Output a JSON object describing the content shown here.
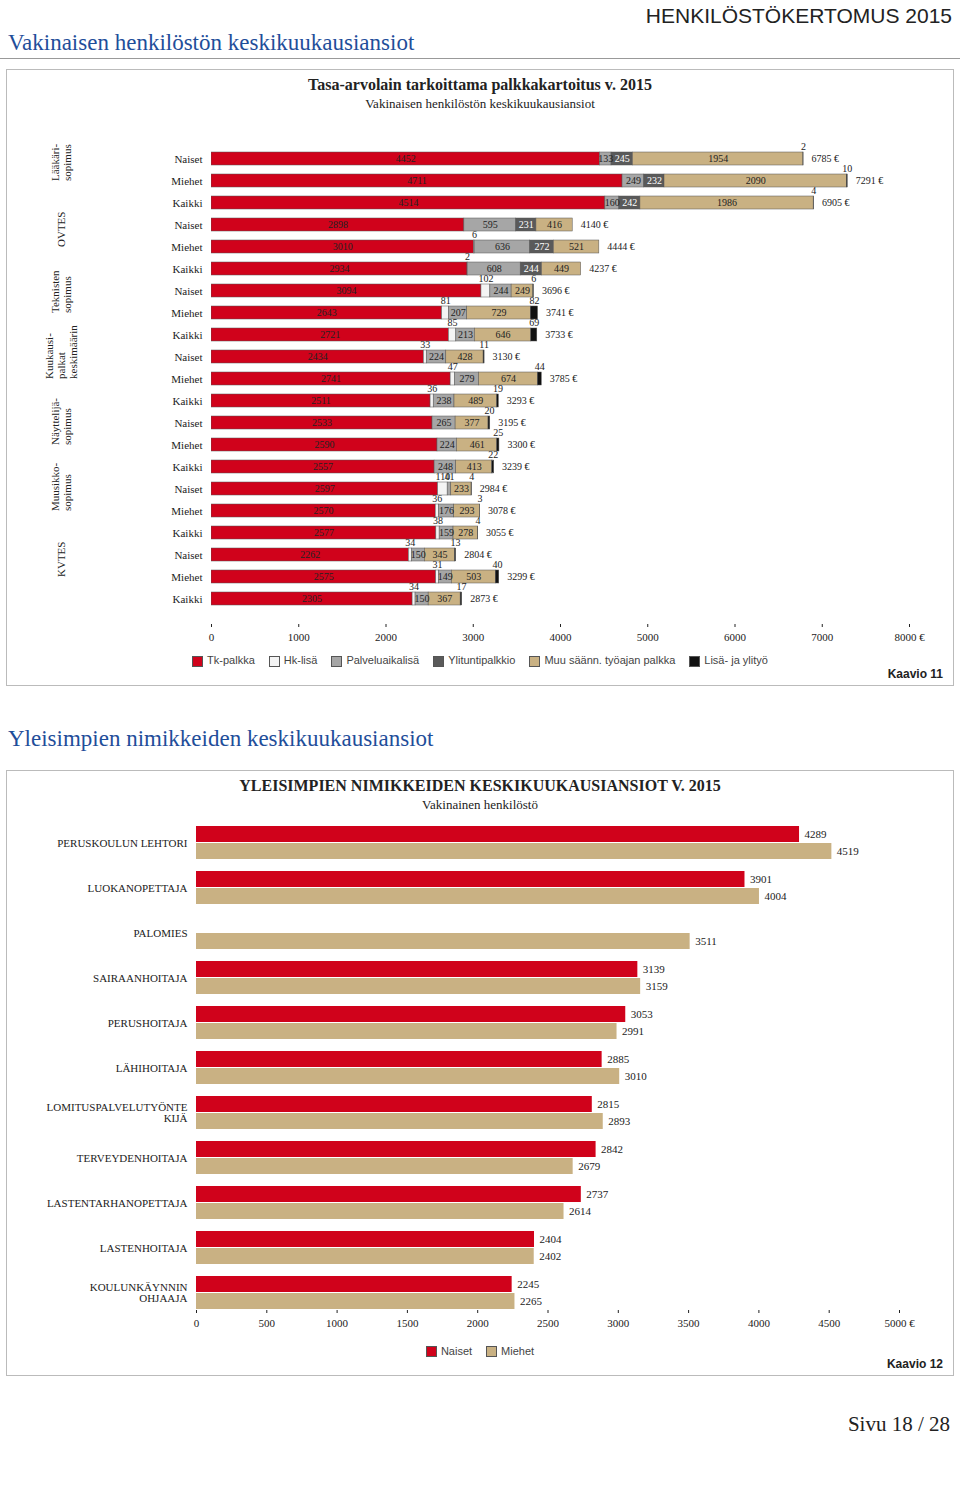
{
  "page": {
    "header": "Vakinaisen henkilöstön keskikuukausiansiot",
    "header_right": "HENKILÖSTÖKERTOMUS 2015",
    "section": "Yleisimpien nimikkeiden keskikuukausiansiot",
    "footer": "Sivu 18 / 28"
  },
  "chart_data": [
    {
      "type": "bar",
      "orientation": "horizontal",
      "stacked": true,
      "data_labels": true,
      "grid": false,
      "legend": "bottom",
      "title": "Tasa-arvolain tarkoittama palkkakartoitus v. 2015",
      "subtitle": "Vakinaisen henkilöstön keskikuukausiansiot",
      "caption": "Kaavio 11",
      "groups": [
        {
          "label": "Lääkäri-\nsopimus",
          "categories": [
            "Naiset",
            "Miehet",
            "Kaikki"
          ]
        },
        {
          "label": "OVTES",
          "categories": [
            "Naiset",
            "Miehet",
            "Kaikki"
          ]
        },
        {
          "label": "Teknisten\nsopimus",
          "categories": [
            "Naiset",
            "Miehet",
            "Kaikki"
          ]
        },
        {
          "label": "Kuukausi-\npalkat\nkeskimäärin",
          "categories": [
            "Naiset",
            "Miehet",
            "Kaikki"
          ]
        },
        {
          "label": "Näyttelijä-\nsopimus",
          "categories": [
            "Naiset",
            "Miehet",
            "Kaikki"
          ]
        },
        {
          "label": "Muusikko-\nsopimus",
          "categories": [
            "Naiset",
            "Miehet",
            "Kaikki"
          ]
        },
        {
          "label": "KVTES",
          "categories": [
            "Naiset",
            "Miehet",
            "Kaikki"
          ]
        }
      ],
      "series": [
        {
          "name": "Tk-palkka",
          "color": "#d0021b",
          "values": [
            4452,
            4711,
            4514,
            2898,
            3010,
            2934,
            3094,
            2643,
            2721,
            2434,
            2741,
            2511,
            2533,
            2590,
            2557,
            2597,
            2570,
            2577,
            2262,
            2575,
            2305
          ]
        },
        {
          "name": "Hk-lisä",
          "color": "#f4f4f4",
          "values": [
            0,
            0,
            0,
            0,
            6,
            2,
            102,
            81,
            85,
            33,
            47,
            36,
            0,
            0,
            0,
            110,
            36,
            38,
            34,
            31,
            34
          ]
        },
        {
          "name": "Palveluaikalisä",
          "color": "#a6a6a6",
          "values": [
            133,
            249,
            160,
            595,
            636,
            608,
            244,
            207,
            213,
            224,
            279,
            238,
            265,
            224,
            248,
            41,
            176,
            159,
            150,
            149,
            150
          ]
        },
        {
          "name": "Ylituntipalkkio",
          "color": "#5a5a5a",
          "values": [
            245,
            232,
            242,
            231,
            272,
            244,
            0,
            0,
            0,
            0,
            0,
            0,
            0,
            0,
            0,
            0,
            0,
            0,
            0,
            0,
            0
          ]
        },
        {
          "name": "Muu säänn. työajan palkka",
          "color": "#c9b183",
          "values": [
            1954,
            2090,
            1986,
            416,
            521,
            449,
            249,
            729,
            646,
            428,
            674,
            489,
            377,
            461,
            413,
            233,
            293,
            278,
            345,
            503,
            367
          ]
        },
        {
          "name": "Lisä- ja ylityö",
          "color": "#111111",
          "values": [
            2,
            10,
            4,
            0,
            0,
            0,
            6,
            82,
            69,
            11,
            44,
            19,
            20,
            25,
            22,
            4,
            3,
            4,
            13,
            40,
            17
          ]
        }
      ],
      "totals": [
        6785,
        7291,
        6905,
        4140,
        4444,
        4237,
        3696,
        3741,
        3733,
        3130,
        3785,
        3293,
        3195,
        3300,
        3239,
        2984,
        3078,
        3055,
        2804,
        3299,
        2873
      ],
      "total_labels": [
        "6785 €",
        "7291 €",
        "6905 €",
        "4140 €",
        "4444 €",
        "4237 €",
        "3696 €",
        "3741 €",
        "3733 €",
        "3130 €",
        "3785 €",
        "3293 €",
        "3195 €",
        "3300 €",
        "3239 €",
        "2984 €",
        "3078 €",
        "3055 €",
        "2804 €",
        "3299 €",
        "2873 €"
      ],
      "xlim": [
        0,
        8000
      ],
      "xticks": [
        0,
        1000,
        2000,
        3000,
        4000,
        5000,
        6000,
        7000,
        {
          "value": 8000,
          "label": "8000 €"
        }
      ]
    },
    {
      "type": "bar",
      "orientation": "horizontal",
      "data_labels": true,
      "grid": false,
      "legend": "bottom",
      "title": "YLEISIMPIEN NIMIKKEIDEN KESKIKUUKAUSIANSIOT V. 2015",
      "subtitle": "Vakinainen henkilöstö",
      "caption": "Kaavio 12",
      "categories": [
        "PERUSKOULUN LEHTORI",
        "LUOKANOPETTAJA",
        "PALOMIES",
        "SAIRAANHOITAJA",
        "PERUSHOITAJA",
        "LÄHIHOITAJA",
        "LOMITUSPALVELUTYÖNTE\nKIJÄ",
        "TERVEYDENHOITAJA",
        "LASTENTARHANOPETTAJA",
        "LASTENHOITAJA",
        "KOULUNKÄYNNIN\nOHJAAJA"
      ],
      "series": [
        {
          "name": "Naiset",
          "color": "#d0021b",
          "values": [
            4289,
            3901,
            null,
            3139,
            3053,
            2885,
            2815,
            2842,
            2737,
            2404,
            2245
          ]
        },
        {
          "name": "Miehet",
          "color": "#c9b183",
          "values": [
            4519,
            4004,
            3511,
            3159,
            2991,
            3010,
            2893,
            2679,
            2614,
            2402,
            2265
          ]
        }
      ],
      "xlim": [
        0,
        5000
      ],
      "xticks": [
        0,
        500,
        1000,
        1500,
        2000,
        2500,
        3000,
        3500,
        4000,
        4500,
        {
          "value": 5000,
          "label": "5000 €"
        }
      ]
    }
  ]
}
